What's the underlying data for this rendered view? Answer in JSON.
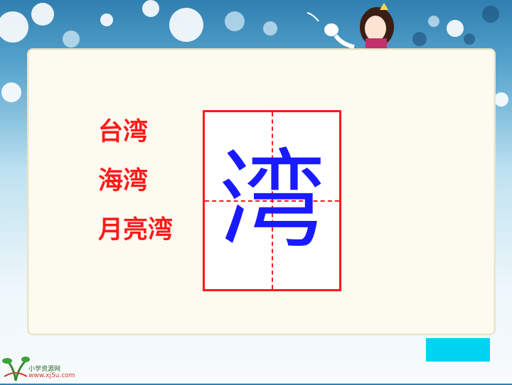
{
  "words": [
    "台湾",
    "海湾",
    "月亮湾"
  ],
  "character": "湾",
  "logo": {
    "name": "小学资源网",
    "url": "www.xj5u.com"
  },
  "colors": {
    "word_text": "#ff1a1a",
    "grid_border": "#ff1a1a",
    "character": "#1a1aff",
    "button": "#00d4f2",
    "card": "#fdfbf0"
  }
}
